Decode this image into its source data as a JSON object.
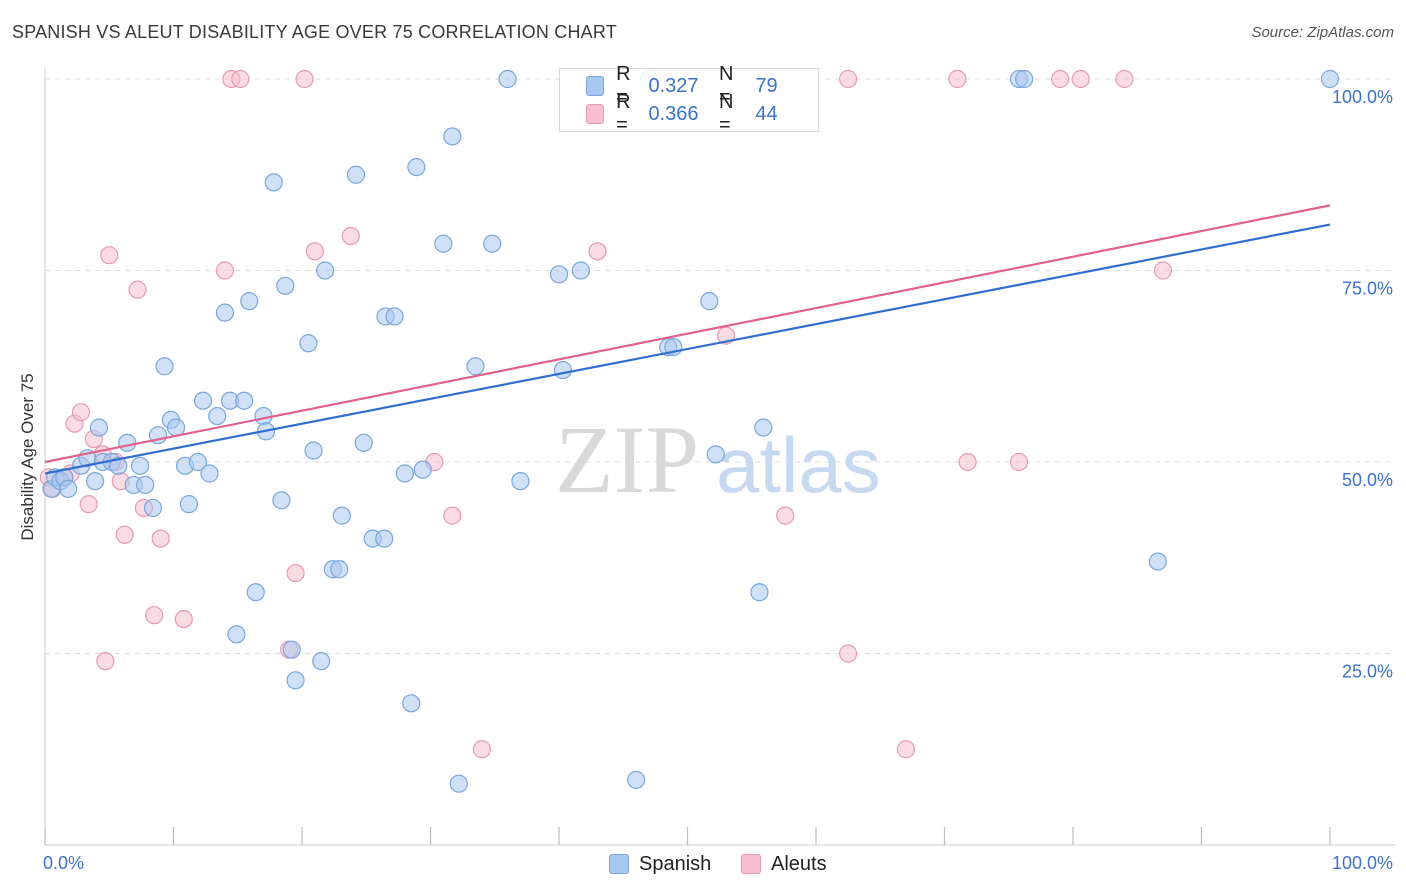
{
  "title": "SPANISH VS ALEUT DISABILITY AGE OVER 75 CORRELATION CHART",
  "source": "Source: ZipAtlas.com",
  "watermark": {
    "zip": "ZIP",
    "atlas": "atlas"
  },
  "legend": {
    "rows": [
      {
        "r_label": "R =",
        "r_value": "0.327",
        "n_label": "N =",
        "n_value": "79"
      },
      {
        "r_label": "R =",
        "r_value": "0.366",
        "n_label": "N =",
        "n_value": "44"
      }
    ]
  },
  "colors": {
    "spanish_fill": "#a9c8f0",
    "spanish_stroke": "#7aa6dc",
    "spanish_line": "#2f6fcf",
    "aleut_fill": "#f7bfd0",
    "aleut_stroke": "#e69ab3",
    "aleut_line": "#e0628e",
    "tick_label": "#3d72c9",
    "grid": "#dcdcdc"
  },
  "chart_data": {
    "type": "scatter",
    "title": "SPANISH VS ALEUT DISABILITY AGE OVER 75 CORRELATION CHART",
    "xlabel": "",
    "ylabel": "Disability Age Over 75",
    "xlim": [
      0,
      100
    ],
    "ylim": [
      0,
      102
    ],
    "x_tick_labels": [
      "0.0%",
      "100.0%"
    ],
    "y_ticks": [
      25,
      50,
      75,
      100
    ],
    "y_tick_labels": [
      "25.0%",
      "50.0%",
      "75.0%",
      "100.0%"
    ],
    "grid": true,
    "legend_position": "top-center",
    "series": [
      {
        "name": "Spanish",
        "points": [
          [
            0.5,
            46.5
          ],
          [
            0.8,
            48
          ],
          [
            1.2,
            47.5
          ],
          [
            1.5,
            48
          ],
          [
            1.8,
            46.5
          ],
          [
            2.8,
            49.5
          ],
          [
            3.3,
            50.5
          ],
          [
            3.9,
            47.5
          ],
          [
            4.2,
            54.5
          ],
          [
            4.5,
            50
          ],
          [
            5.2,
            50
          ],
          [
            5.7,
            49.5
          ],
          [
            6.4,
            52.5
          ],
          [
            6.9,
            47
          ],
          [
            7.4,
            49.5
          ],
          [
            7.8,
            47
          ],
          [
            8.4,
            44
          ],
          [
            8.8,
            53.5
          ],
          [
            9.3,
            62.5
          ],
          [
            9.8,
            55.5
          ],
          [
            10.2,
            54.5
          ],
          [
            10.9,
            49.5
          ],
          [
            11.2,
            44.5
          ],
          [
            11.9,
            50
          ],
          [
            12.3,
            58
          ],
          [
            12.8,
            48.5
          ],
          [
            13.4,
            56
          ],
          [
            14.0,
            69.5
          ],
          [
            14.4,
            58
          ],
          [
            14.9,
            27.5
          ],
          [
            15.5,
            58
          ],
          [
            15.9,
            71
          ],
          [
            16.4,
            33
          ],
          [
            17.0,
            56
          ],
          [
            17.2,
            54
          ],
          [
            17.8,
            86.5
          ],
          [
            18.4,
            45
          ],
          [
            18.7,
            73
          ],
          [
            19.2,
            25.5
          ],
          [
            19.5,
            21.5
          ],
          [
            20.5,
            65.5
          ],
          [
            20.9,
            51.5
          ],
          [
            21.5,
            24
          ],
          [
            21.8,
            75
          ],
          [
            22.4,
            36
          ],
          [
            22.9,
            36
          ],
          [
            23.1,
            43
          ],
          [
            24.2,
            87.5
          ],
          [
            24.8,
            52.5
          ],
          [
            25.5,
            40
          ],
          [
            26.4,
            40
          ],
          [
            26.5,
            69
          ],
          [
            27.2,
            69
          ],
          [
            28.0,
            48.5
          ],
          [
            28.5,
            18.5
          ],
          [
            28.9,
            88.5
          ],
          [
            29.4,
            49
          ],
          [
            31.0,
            78.5
          ],
          [
            31.7,
            92.5
          ],
          [
            32.2,
            8
          ],
          [
            33.5,
            62.5
          ],
          [
            34.8,
            78.5
          ],
          [
            36.0,
            100
          ],
          [
            37.0,
            47.5
          ],
          [
            40.0,
            74.5
          ],
          [
            40.3,
            62
          ],
          [
            41.7,
            75
          ],
          [
            46.0,
            8.5
          ],
          [
            47.0,
            100
          ],
          [
            48.5,
            65
          ],
          [
            48.9,
            65
          ],
          [
            51.7,
            71
          ],
          [
            52.2,
            51
          ],
          [
            55.6,
            33
          ],
          [
            55.9,
            54.5
          ],
          [
            75.8,
            100
          ],
          [
            76.2,
            100
          ],
          [
            86.6,
            37
          ],
          [
            100,
            100
          ]
        ]
      },
      {
        "name": "Aleuts",
        "points": [
          [
            0.3,
            48
          ],
          [
            0.6,
            46.5
          ],
          [
            1.5,
            48
          ],
          [
            2.0,
            48.5
          ],
          [
            2.3,
            55
          ],
          [
            2.8,
            56.5
          ],
          [
            3.4,
            44.5
          ],
          [
            3.8,
            53
          ],
          [
            4.5,
            51
          ],
          [
            4.7,
            24
          ],
          [
            5.0,
            77
          ],
          [
            5.5,
            50
          ],
          [
            5.9,
            47.5
          ],
          [
            6.2,
            40.5
          ],
          [
            7.2,
            72.5
          ],
          [
            7.7,
            44
          ],
          [
            8.5,
            30
          ],
          [
            9.0,
            40
          ],
          [
            10.8,
            29.5
          ],
          [
            14.0,
            75
          ],
          [
            14.5,
            100
          ],
          [
            15.2,
            100
          ],
          [
            19.0,
            25.5
          ],
          [
            19.5,
            35.5
          ],
          [
            20.2,
            100
          ],
          [
            21.0,
            77.5
          ],
          [
            23.8,
            79.5
          ],
          [
            30.3,
            50
          ],
          [
            31.7,
            43
          ],
          [
            34.0,
            12.5
          ],
          [
            43.0,
            77.5
          ],
          [
            47.3,
            100
          ],
          [
            53.0,
            66.5
          ],
          [
            57.6,
            43
          ],
          [
            62.5,
            25
          ],
          [
            62.5,
            100
          ],
          [
            67.0,
            12.5
          ],
          [
            71.0,
            100
          ],
          [
            71.8,
            50
          ],
          [
            75.8,
            50
          ],
          [
            79.0,
            100
          ],
          [
            80.6,
            100
          ],
          [
            84.0,
            100
          ],
          [
            87.0,
            75
          ]
        ]
      }
    ],
    "trendlines": [
      {
        "series": "Spanish",
        "x": [
          0,
          100
        ],
        "y": [
          48.5,
          81
        ]
      },
      {
        "series": "Aleuts",
        "x": [
          0,
          100
        ],
        "y": [
          50,
          83.5
        ]
      }
    ]
  },
  "bottom_legend": [
    {
      "label": "Spanish"
    },
    {
      "label": "Aleuts"
    }
  ]
}
